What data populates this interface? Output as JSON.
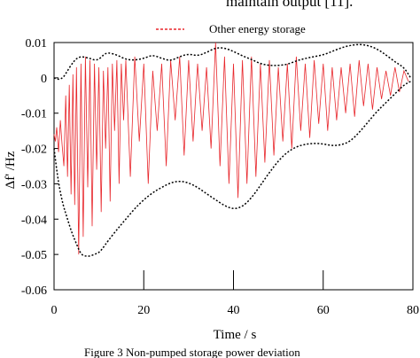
{
  "top_text": "maintain output [11].",
  "caption": "Figure 3     Non-pumped storage power deviation",
  "chart_data": {
    "type": "line",
    "xlabel": "Time / s",
    "ylabel": "Δf' /Hz",
    "xlim": [
      0,
      80
    ],
    "ylim": [
      -0.06,
      0.01
    ],
    "x_ticks": [
      0,
      20,
      40,
      60,
      80
    ],
    "y_ticks": [
      0.01,
      0,
      -0.01,
      -0.02,
      -0.03,
      -0.04,
      -0.05,
      -0.06
    ],
    "x_tick_labels": [
      "0",
      "20",
      "40",
      "60",
      "80"
    ],
    "y_tick_labels": [
      "0.01",
      "0",
      "-0.01",
      "-0.02",
      "-0.03",
      "-0.04",
      "-0.05",
      "-0.06"
    ],
    "grid": false,
    "legend_position": "top-center",
    "series": [
      {
        "name": "Other energy storage",
        "color": "#e8262b",
        "line_style": "dashed",
        "x": [
          0,
          0.3,
          0.6,
          1.0,
          1.4,
          1.8,
          2.2,
          2.6,
          3.0,
          3.4,
          3.8,
          4.2,
          4.6,
          5.0,
          5.5,
          6.0,
          6.5,
          7.0,
          7.5,
          8.0,
          8.5,
          9.0,
          9.5,
          10.0,
          10.5,
          11.0,
          11.5,
          12.0,
          12.5,
          13.0,
          13.5,
          14.0,
          14.5,
          15.0,
          15.5,
          16.0,
          17.0,
          18.0,
          19.0,
          20.0,
          21.0,
          22.0,
          23.0,
          24.0,
          25.0,
          26.0,
          27.0,
          28.0,
          29.0,
          30.0,
          31.0,
          32.0,
          33.0,
          34.0,
          35.0,
          36.0,
          37.0,
          38.0,
          39.0,
          40.0,
          41.0,
          42.0,
          43.0,
          44.0,
          45.0,
          46.0,
          47.0,
          48.0,
          49.0,
          50.0,
          51.0,
          52.0,
          53.0,
          54.0,
          55.0,
          56.0,
          57.0,
          58.0,
          59.0,
          60.0,
          61.0,
          62.0,
          63.0,
          64.0,
          65.0,
          66.0,
          67.0,
          68.0,
          69.0,
          70.0,
          71.0,
          72.0,
          73.0,
          74.0,
          75.0,
          76.0,
          77.0,
          78.0,
          79.0
        ],
        "y": [
          -0.016,
          -0.018,
          -0.014,
          -0.021,
          -0.012,
          -0.019,
          -0.025,
          -0.005,
          -0.028,
          -0.002,
          -0.033,
          0.001,
          -0.036,
          0.003,
          -0.05,
          0.004,
          -0.045,
          0.006,
          -0.031,
          0.005,
          -0.042,
          0.004,
          -0.026,
          0.003,
          -0.038,
          0.002,
          -0.02,
          0.003,
          -0.035,
          0.004,
          -0.015,
          0.005,
          -0.03,
          0.004,
          -0.012,
          0.005,
          -0.028,
          0.006,
          -0.018,
          0.004,
          -0.03,
          0.002,
          -0.015,
          0.004,
          -0.025,
          0.005,
          -0.012,
          0.006,
          -0.022,
          0.005,
          -0.018,
          0.004,
          -0.015,
          0.003,
          -0.02,
          0.01,
          -0.025,
          0.006,
          -0.03,
          0.004,
          -0.034,
          0.005,
          -0.03,
          0.006,
          -0.028,
          0.004,
          -0.024,
          0.005,
          -0.022,
          0.003,
          -0.018,
          0.004,
          -0.02,
          0.006,
          -0.015,
          0.004,
          -0.017,
          0.005,
          -0.013,
          0.004,
          -0.015,
          0.003,
          -0.012,
          0.003,
          -0.01,
          0.004,
          -0.011,
          0.005,
          -0.008,
          0.004,
          -0.009,
          0.003,
          -0.006,
          0.002,
          -0.005,
          0.003,
          -0.004,
          0.002,
          -0.001
        ]
      }
    ],
    "envelope": {
      "color": "#000000",
      "line_style": "dotted",
      "upper": {
        "x": [
          0,
          1,
          2,
          3,
          4,
          5,
          6,
          7,
          8,
          9,
          10,
          11,
          12,
          14,
          16,
          18,
          20,
          22,
          24,
          26,
          28,
          30,
          32,
          34,
          36,
          38,
          40,
          42,
          44,
          46,
          48,
          50,
          52,
          54,
          56,
          58,
          60,
          62,
          64,
          66,
          68,
          70,
          72,
          74,
          76,
          78,
          79.5
        ],
        "y": [
          0.0,
          -0.0005,
          0.0,
          0.002,
          0.004,
          0.0055,
          0.006,
          0.0058,
          0.0055,
          0.005,
          0.0052,
          0.0065,
          0.0072,
          0.0065,
          0.0052,
          0.005,
          0.0055,
          0.0065,
          0.0055,
          0.0048,
          0.006,
          0.0068,
          0.0062,
          0.0072,
          0.0085,
          0.0085,
          0.0075,
          0.0062,
          0.0052,
          0.004,
          0.0035,
          0.0035,
          0.0038,
          0.0048,
          0.0055,
          0.006,
          0.0065,
          0.0075,
          0.0085,
          0.0092,
          0.0095,
          0.0092,
          0.0082,
          0.0065,
          0.0045,
          0.003,
          0.0
        ]
      },
      "lower": {
        "x": [
          0,
          1,
          2,
          3,
          4,
          5,
          6,
          7,
          8,
          9,
          10,
          11,
          12,
          14,
          16,
          18,
          20,
          22,
          24,
          26,
          28,
          30,
          32,
          34,
          36,
          38,
          40,
          42,
          44,
          46,
          48,
          50,
          52,
          54,
          56,
          58,
          60,
          62,
          64,
          66,
          68,
          70,
          72,
          74,
          76,
          78,
          79.5
        ],
        "y": [
          -0.02,
          -0.03,
          -0.036,
          -0.04,
          -0.044,
          -0.047,
          -0.05,
          -0.0505,
          -0.0505,
          -0.05,
          -0.0495,
          -0.048,
          -0.0462,
          -0.043,
          -0.04,
          -0.037,
          -0.0345,
          -0.0325,
          -0.031,
          -0.0297,
          -0.0292,
          -0.0297,
          -0.031,
          -0.0328,
          -0.0345,
          -0.0362,
          -0.0372,
          -0.0365,
          -0.034,
          -0.0305,
          -0.0268,
          -0.0235,
          -0.021,
          -0.0195,
          -0.0188,
          -0.0185,
          -0.0187,
          -0.0192,
          -0.019,
          -0.018,
          -0.0155,
          -0.0125,
          -0.0095,
          -0.007,
          -0.0045,
          -0.002,
          -0.001
        ]
      }
    }
  }
}
